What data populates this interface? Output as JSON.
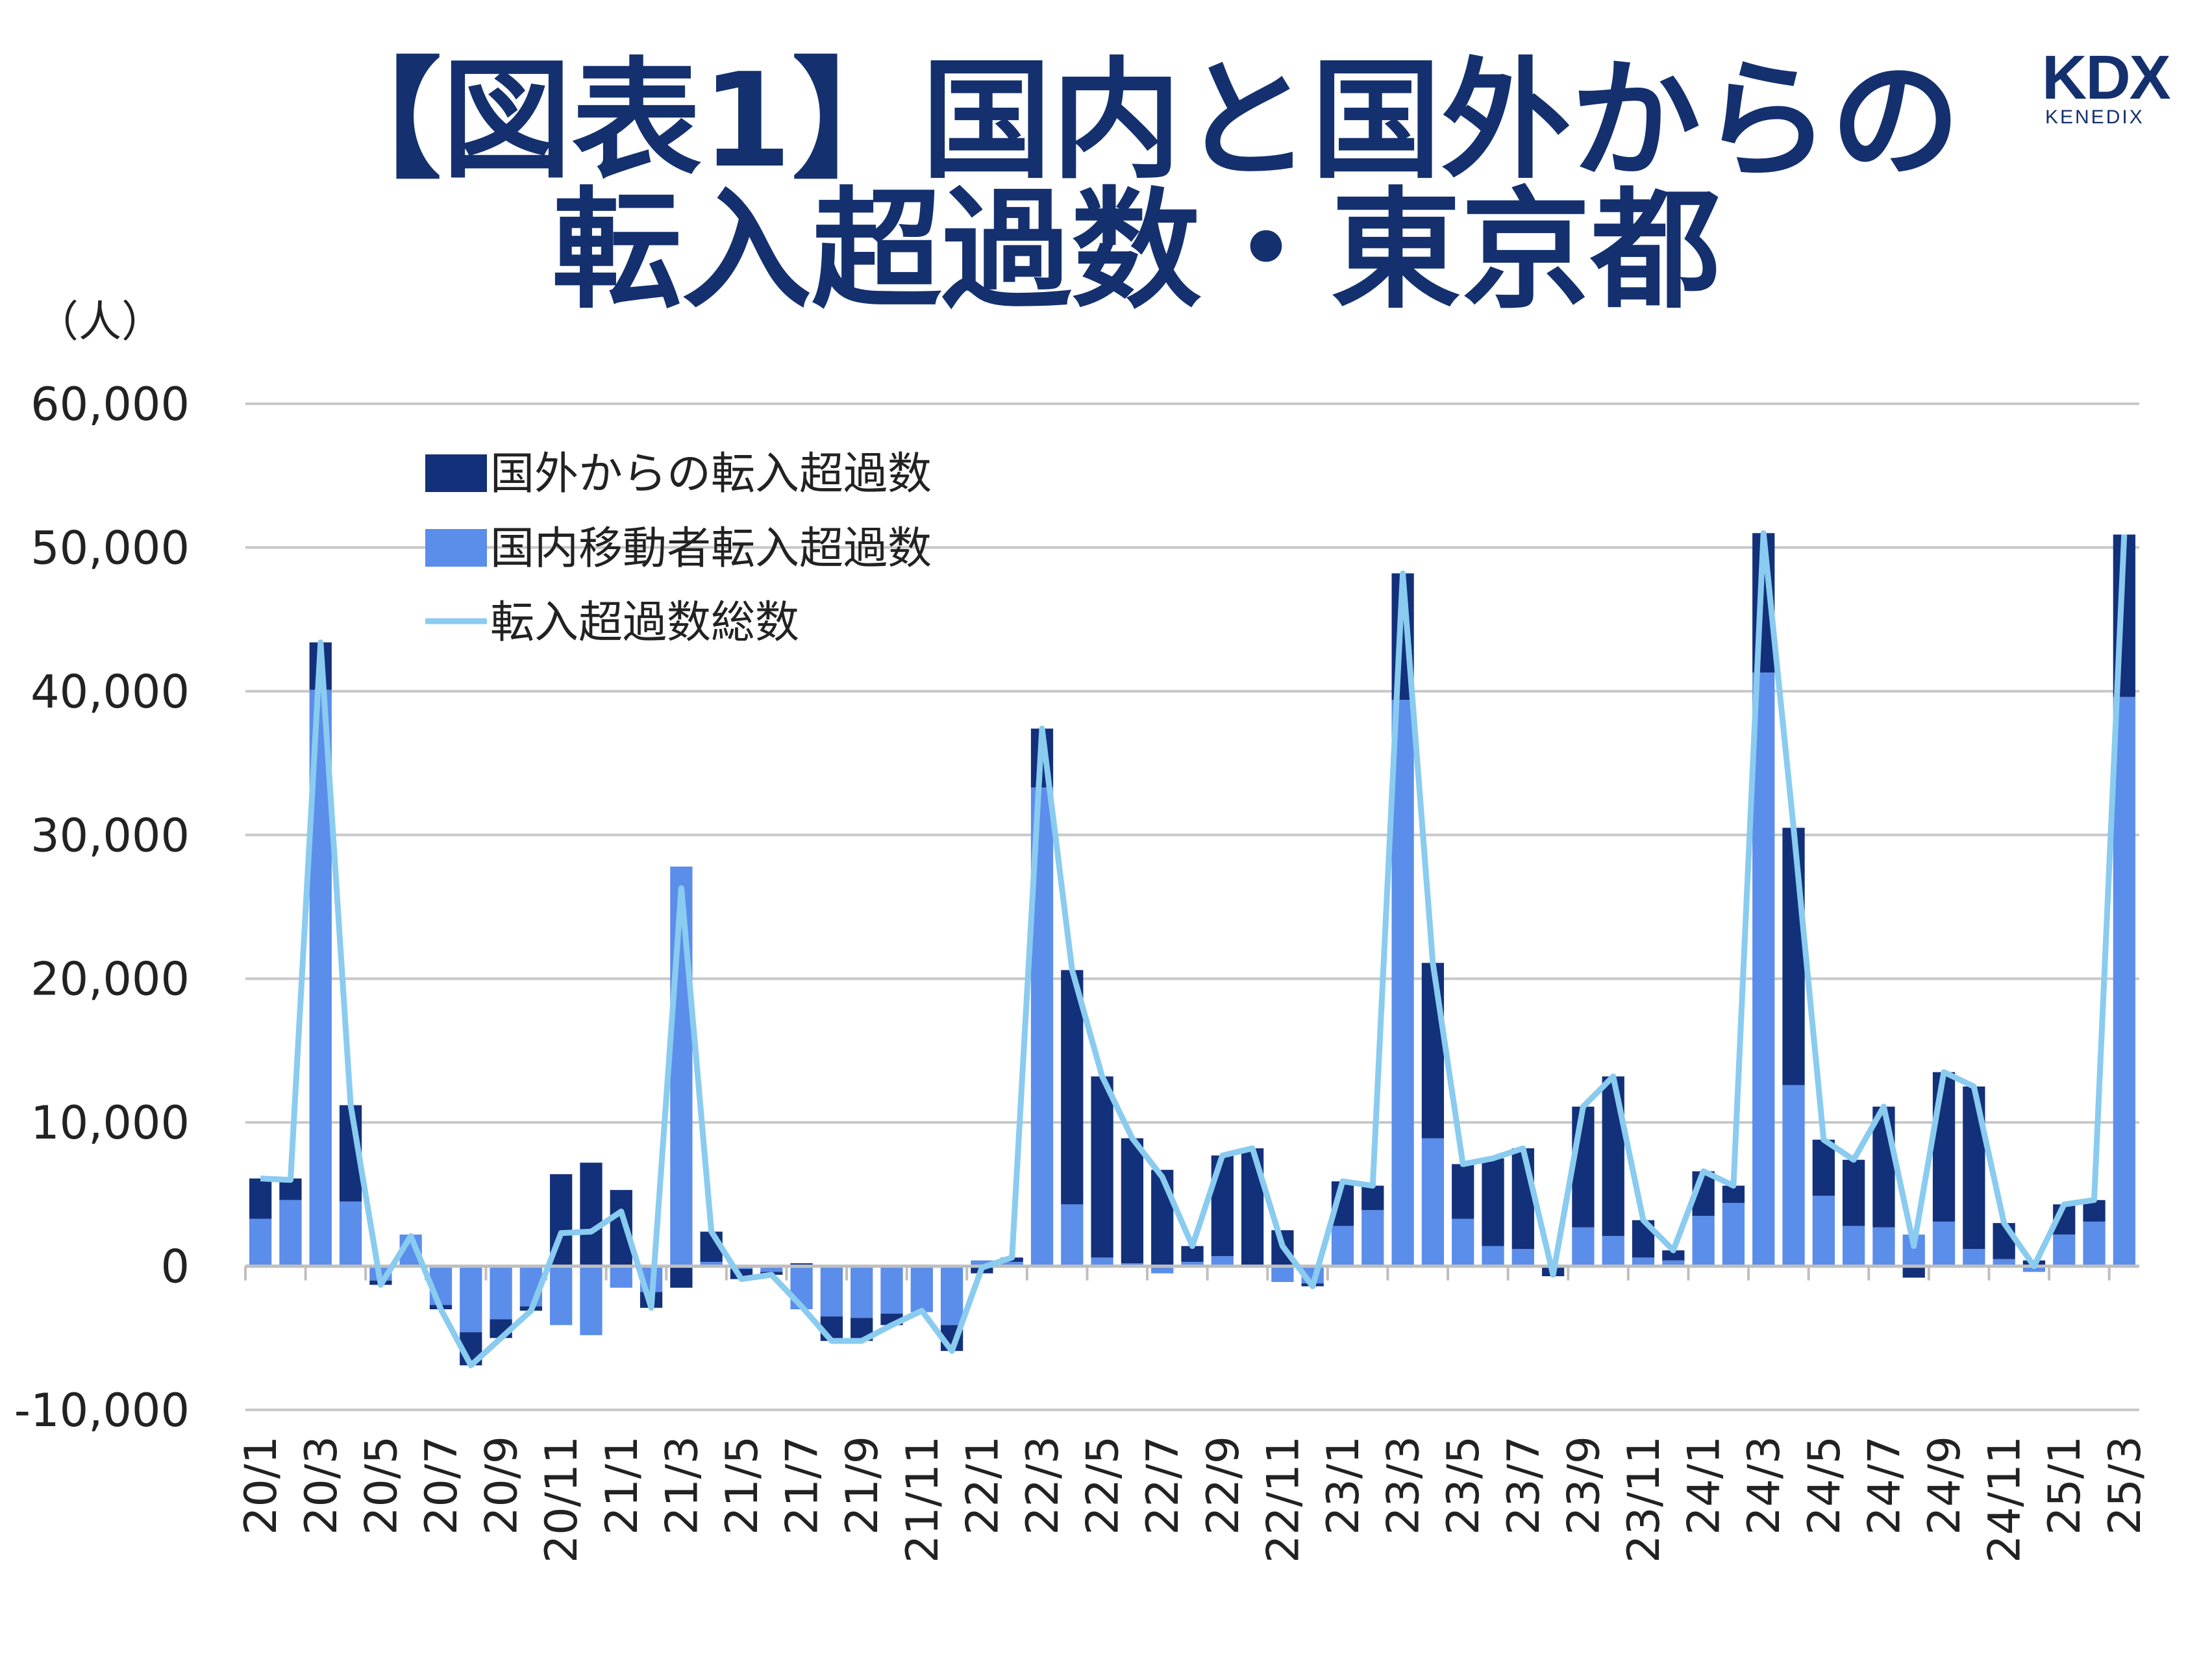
{
  "chart_data": {
    "type": "bar",
    "title_line1": "【図表1】国内と国外からの",
    "title_line2": "転入超過数・東京都",
    "unit_label": "（人）",
    "logo": {
      "text": "KDX",
      "subtext": "KENEDIX"
    },
    "ylim": [
      -10000,
      60000
    ],
    "yticks": [
      60000,
      50000,
      40000,
      30000,
      20000,
      10000,
      0,
      -10000
    ],
    "ytick_labels": [
      "60,000",
      "50,000",
      "40,000",
      "30,000",
      "20,000",
      "10,000",
      "0",
      "-10,000"
    ],
    "grid": true,
    "legend_position": "top-left",
    "colors": {
      "title": "#14306E",
      "overseas": "#13307A",
      "domestic": "#5B8DEA",
      "total": "#8ACBF0",
      "grid": "#C8C8C8"
    },
    "categories": [
      "20/1",
      "20/2",
      "20/3",
      "20/4",
      "20/5",
      "20/6",
      "20/7",
      "20/8",
      "20/9",
      "20/10",
      "20/11",
      "20/12",
      "21/1",
      "21/2",
      "21/3",
      "21/4",
      "21/5",
      "21/6",
      "21/7",
      "21/8",
      "21/9",
      "21/10",
      "21/11",
      "21/12",
      "22/1",
      "22/2",
      "22/3",
      "22/4",
      "22/5",
      "22/6",
      "22/7",
      "22/8",
      "22/9",
      "22/10",
      "22/11",
      "22/12",
      "23/1",
      "23/2",
      "23/3",
      "23/4",
      "23/5",
      "23/6",
      "23/7",
      "23/8",
      "23/9",
      "23/10",
      "23/11",
      "23/12",
      "24/1",
      "24/2",
      "24/3",
      "24/4",
      "24/5",
      "24/6",
      "24/7",
      "24/8",
      "24/9",
      "24/10",
      "24/11",
      "24/12",
      "25/1",
      "25/2",
      "25/3"
    ],
    "xtick_labels": [
      "20/1",
      "20/3",
      "20/5",
      "20/7",
      "20/9",
      "20/11",
      "21/1",
      "21/3",
      "21/5",
      "21/7",
      "21/9",
      "21/11",
      "22/1",
      "22/3",
      "22/5",
      "22/7",
      "22/9",
      "22/11",
      "23/1",
      "23/3",
      "23/5",
      "23/7",
      "23/9",
      "23/11",
      "24/1",
      "24/3",
      "24/5",
      "24/7",
      "24/9",
      "24/11",
      "25/1",
      "25/3"
    ],
    "series": [
      {
        "name": "国外からの転入超過数",
        "type": "bar",
        "values": [
          2800,
          1500,
          3300,
          6700,
          -300,
          -100,
          -300,
          -2300,
          -1300,
          -300,
          6400,
          7200,
          5300,
          -1100,
          -1500,
          2100,
          -700,
          -200,
          200,
          -1700,
          -1600,
          -800,
          100,
          -1800,
          -500,
          300,
          4100,
          16300,
          12600,
          8700,
          6700,
          1100,
          7000,
          8100,
          2500,
          -200,
          3100,
          1700,
          8800,
          12200,
          3800,
          6100,
          7000,
          -700,
          8400,
          11100,
          2600,
          700,
          3100,
          1200,
          9700,
          17900,
          3900,
          4600,
          8400,
          -800,
          10400,
          11300,
          2500,
          400,
          2100,
          1500,
          11300
        ]
      },
      {
        "name": "国内移動者転入超過数",
        "type": "bar",
        "values": [
          3300,
          4600,
          40100,
          4500,
          -1000,
          2200,
          -2700,
          -4600,
          -3700,
          -2800,
          -4100,
          -4800,
          -1500,
          -1800,
          27800,
          300,
          -200,
          -400,
          -3000,
          -3500,
          -3600,
          -3300,
          -3200,
          -4100,
          400,
          300,
          33300,
          4300,
          600,
          200,
          -500,
          300,
          700,
          100,
          -1100,
          -1200,
          2800,
          3900,
          39400,
          8900,
          3300,
          1400,
          1200,
          100,
          2700,
          2100,
          600,
          400,
          3500,
          4400,
          41300,
          12600,
          4900,
          2800,
          2700,
          2200,
          3100,
          1200,
          500,
          -400,
          2200,
          3100,
          39600
        ]
      },
      {
        "name": "転入超過数総数",
        "type": "line",
        "values": [
          6100,
          6000,
          43400,
          11200,
          -1300,
          2100,
          -3000,
          -6900,
          -5000,
          -3100,
          2300,
          2400,
          3800,
          -2900,
          26300,
          2400,
          -900,
          -600,
          -2800,
          -5200,
          -5200,
          -4100,
          -3100,
          -5900,
          -100,
          600,
          37400,
          20600,
          13200,
          8900,
          6200,
          1400,
          7700,
          8200,
          1400,
          -1400,
          5900,
          5600,
          48200,
          21100,
          7100,
          7500,
          8200,
          -600,
          11100,
          13200,
          3200,
          1100,
          6600,
          5600,
          51000,
          30500,
          8800,
          7400,
          11100,
          1400,
          13500,
          12500,
          3000,
          0,
          4300,
          4600,
          50900
        ]
      }
    ]
  }
}
